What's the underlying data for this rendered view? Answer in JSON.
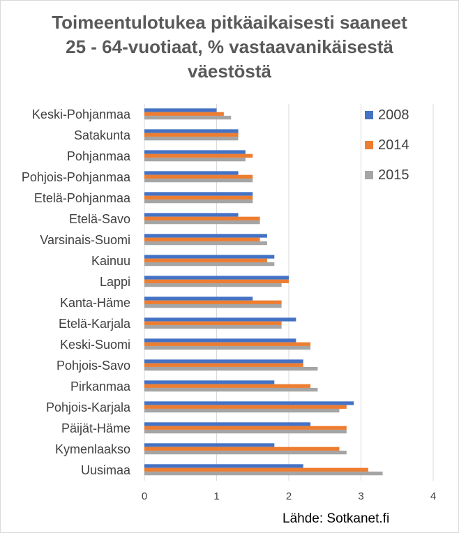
{
  "chart_data": {
    "type": "bar",
    "orientation": "horizontal",
    "title_lines": [
      "Toimeentulotukea pitkäaikaisesti saaneet",
      "25 - 64-vuotiaat, % vastaavanikäisestä",
      "väestöstä"
    ],
    "categories": [
      "Keski-Pohjanmaa",
      "Satakunta",
      "Pohjanmaa",
      "Pohjois-Pohjanmaa",
      "Etelä-Pohjanmaa",
      "Etelä-Savo",
      "Varsinais-Suomi",
      "Kainuu",
      "Lappi",
      "Kanta-Häme",
      "Etelä-Karjala",
      "Keski-Suomi",
      "Pohjois-Savo",
      "Pirkanmaa",
      "Pohjois-Karjala",
      "Päijät-Häme",
      "Kymenlaakso",
      "Uusimaa"
    ],
    "series": [
      {
        "name": "2008",
        "color": "#4472c4",
        "values": [
          1.0,
          1.3,
          1.4,
          1.3,
          1.5,
          1.3,
          1.7,
          1.8,
          2.0,
          1.5,
          2.1,
          2.1,
          2.2,
          1.8,
          2.9,
          2.3,
          1.8,
          2.2
        ]
      },
      {
        "name": "2014",
        "color": "#ed7d31",
        "values": [
          1.1,
          1.3,
          1.5,
          1.5,
          1.5,
          1.6,
          1.6,
          1.7,
          2.0,
          1.9,
          1.9,
          2.3,
          2.2,
          2.3,
          2.8,
          2.8,
          2.7,
          3.1
        ]
      },
      {
        "name": "2015",
        "color": "#a5a5a5",
        "values": [
          1.2,
          1.3,
          1.4,
          1.5,
          1.5,
          1.6,
          1.7,
          1.8,
          1.9,
          1.9,
          1.9,
          2.3,
          2.4,
          2.4,
          2.7,
          2.8,
          2.8,
          3.3
        ]
      }
    ],
    "xlim": [
      0,
      4
    ],
    "xticks": [
      "0",
      "1",
      "2",
      "3",
      "4"
    ],
    "grid": "vertical",
    "legend_position": "top-right",
    "source": "Lähde: Sotkanet.fi"
  }
}
